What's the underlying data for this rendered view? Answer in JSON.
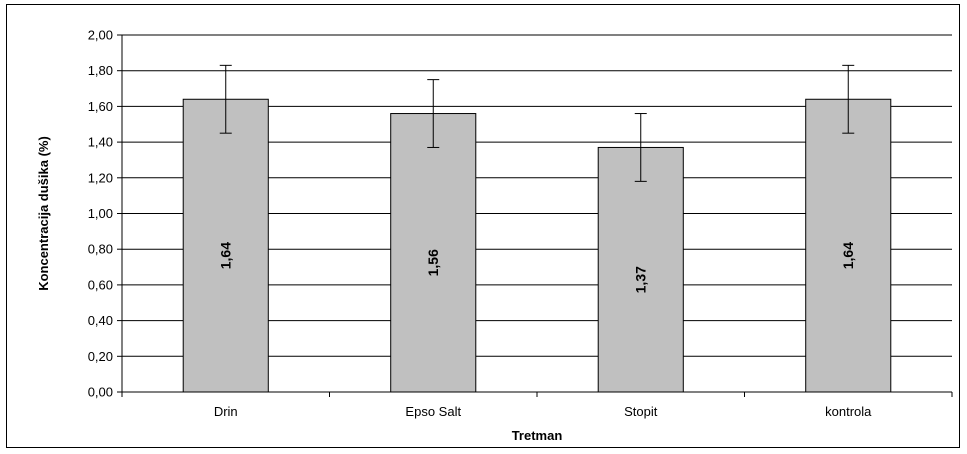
{
  "chart_data": {
    "type": "bar",
    "categories": [
      "Drin",
      "Epso Salt",
      "Stopit",
      "kontrola"
    ],
    "values": [
      1.64,
      1.56,
      1.37,
      1.64
    ],
    "value_labels": [
      "1,64",
      "1,56",
      "1,37",
      "1,64"
    ],
    "error": [
      0.19,
      0.19,
      0.19,
      0.19
    ],
    "xlabel": "Tretman",
    "ylabel": "Koncentracija dušika (%)",
    "ylim": [
      0,
      2
    ],
    "yticks": [
      0,
      0.2,
      0.4,
      0.6,
      0.8,
      1.0,
      1.2,
      1.4,
      1.6,
      1.8,
      2.0
    ],
    "ytick_labels": [
      "0,00",
      "0,20",
      "0,40",
      "0,60",
      "0,80",
      "1,00",
      "1,20",
      "1,40",
      "1,60",
      "1,80",
      "2,00"
    ],
    "grid": true,
    "colors": {
      "bar": "#c0c0c0",
      "edge": "#000000",
      "grid": "#000000"
    }
  }
}
